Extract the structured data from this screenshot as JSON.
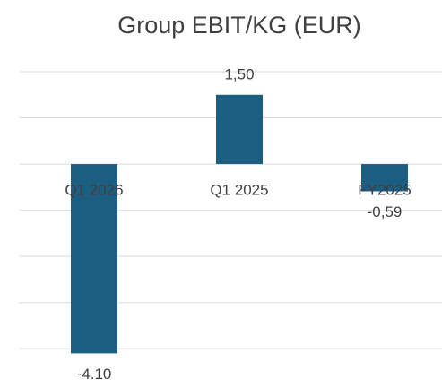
{
  "chart_data": {
    "type": "bar",
    "title": "Group EBIT/KG (EUR)",
    "categories": [
      "Q1 2026",
      "Q1 2025",
      "FY2025"
    ],
    "values": [
      -4.1,
      1.5,
      -0.59
    ],
    "value_labels": [
      "-4.10",
      "1,50",
      "-0,59"
    ],
    "color": "#1b5e82",
    "ylim": [
      -4.5,
      2
    ],
    "yticks": [
      -4,
      -3,
      -2,
      -1,
      0,
      1,
      2
    ],
    "grid": true
  }
}
